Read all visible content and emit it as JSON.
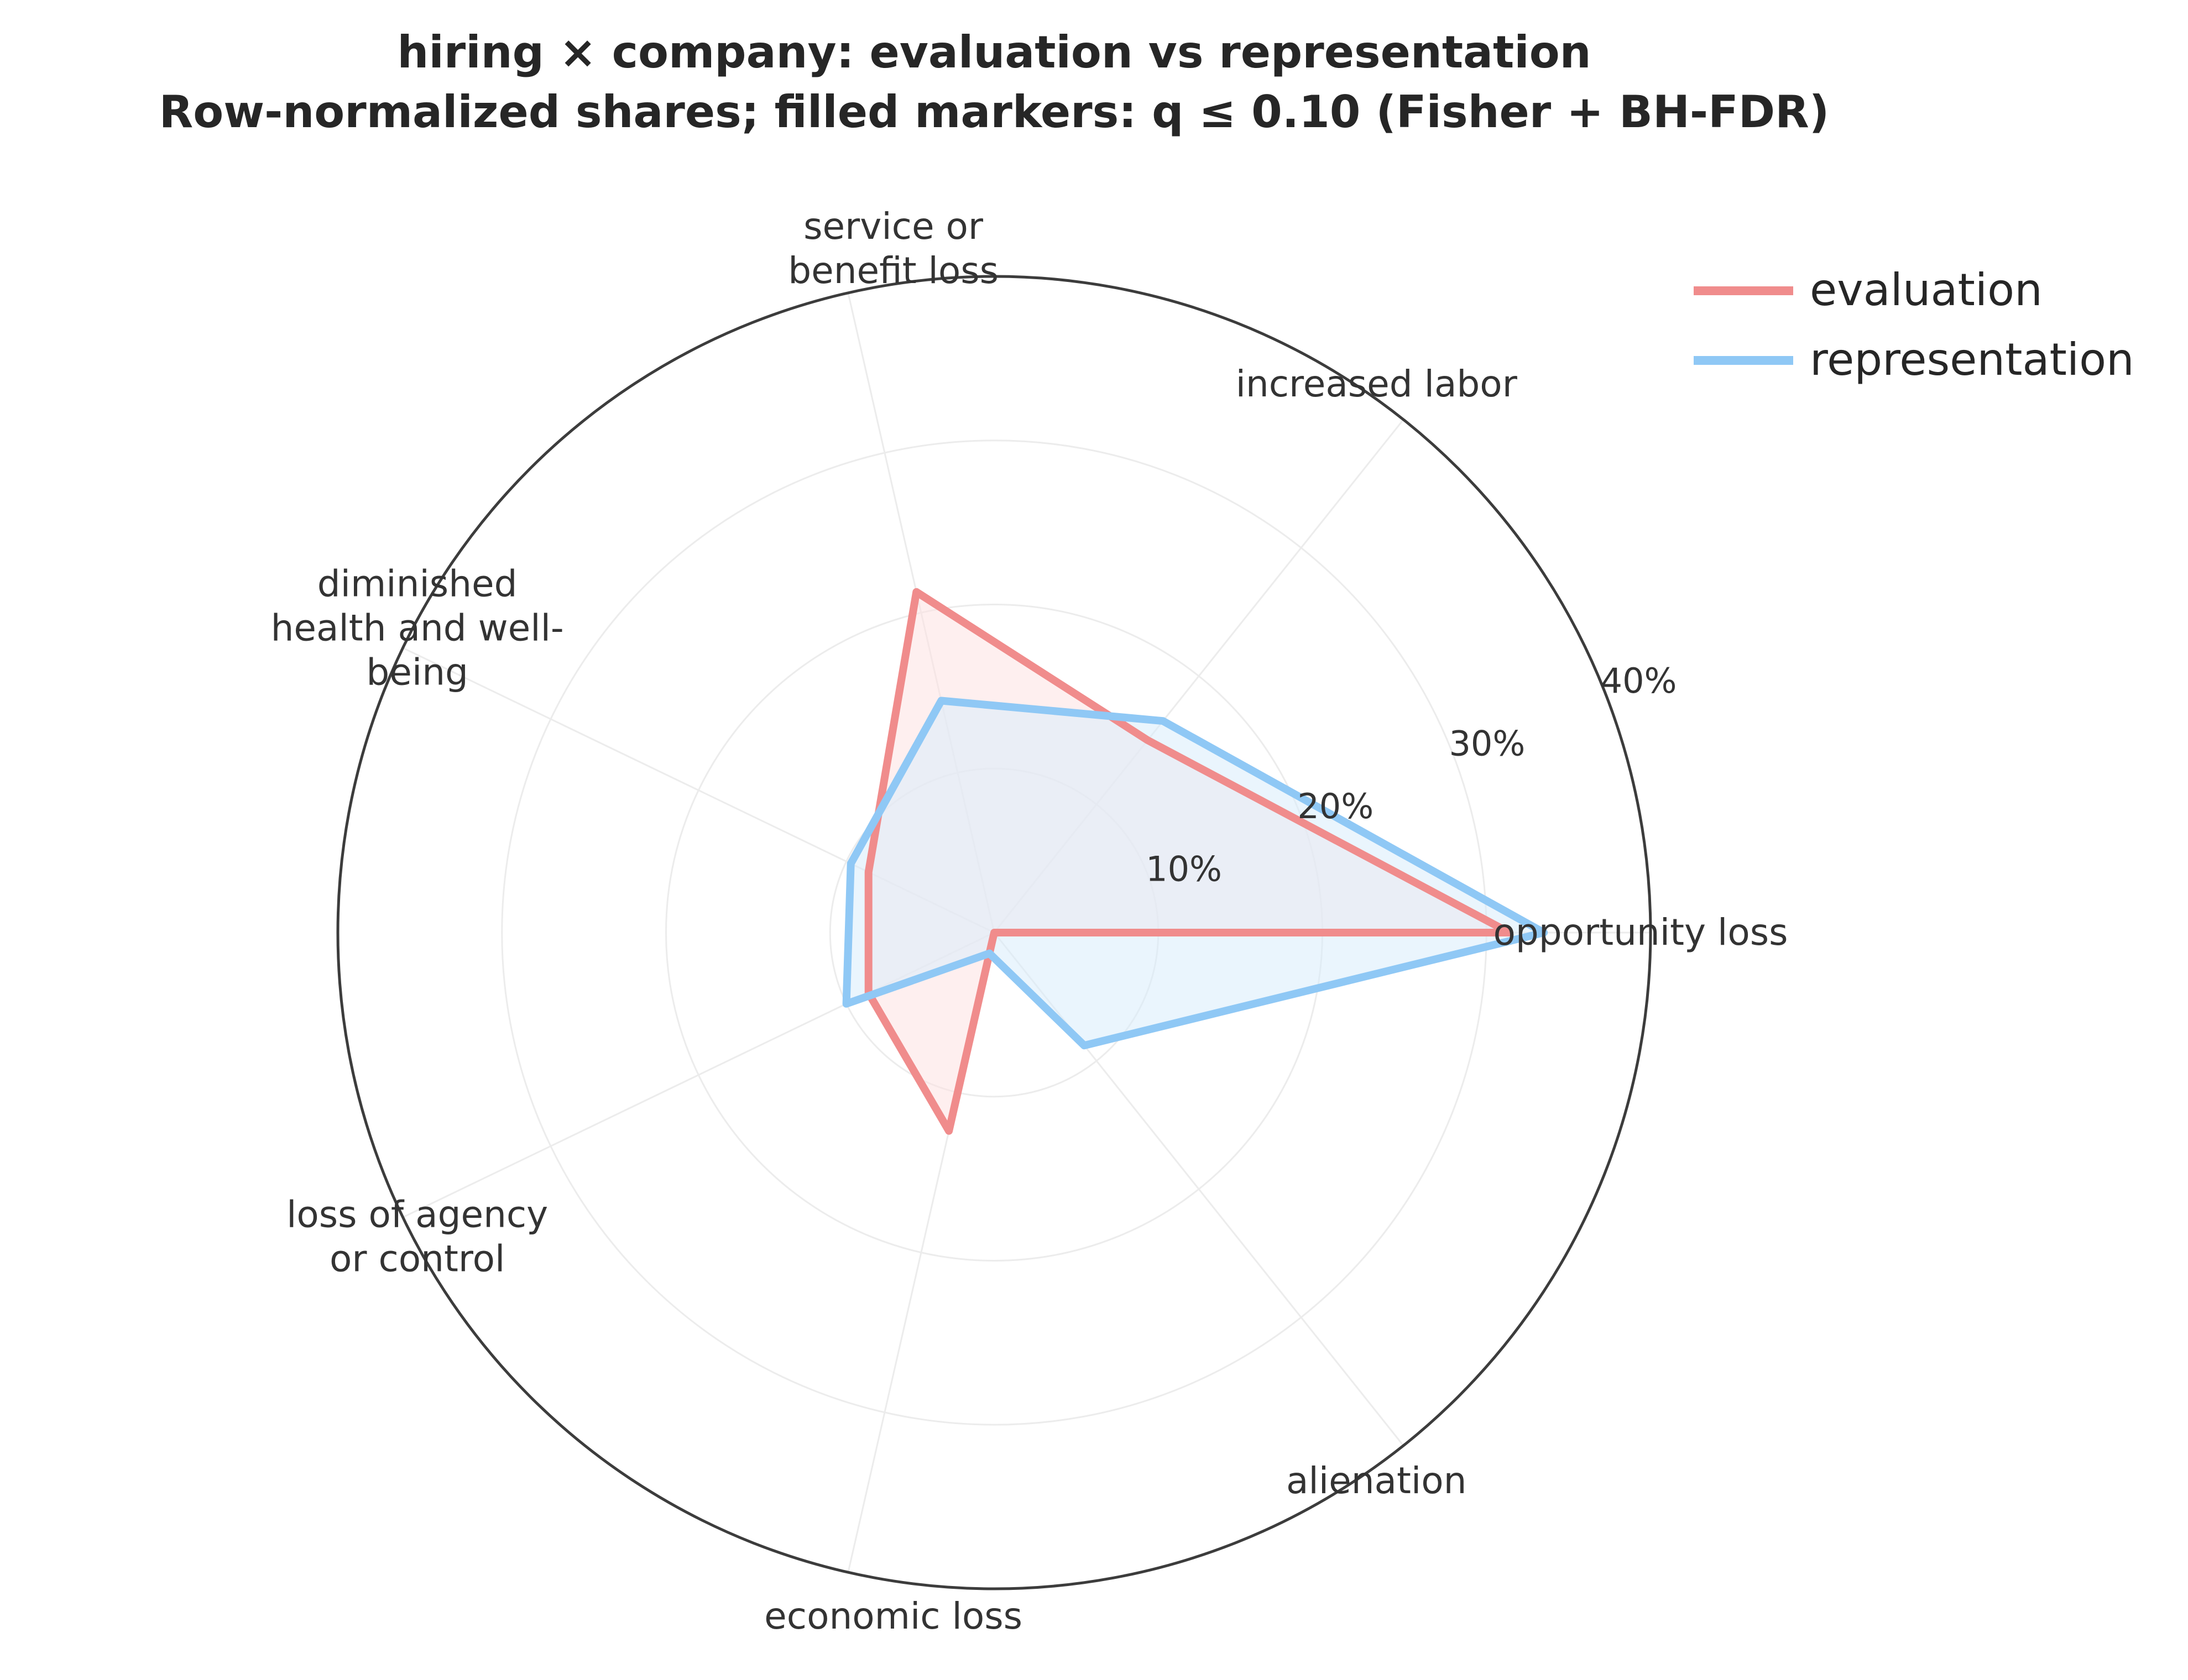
{
  "chart_data": {
    "type": "radar",
    "title_lines": [
      "hiring × company: evaluation vs representation",
      "Row-normalized shares; filled markers: q ≤ 0.10 (Fisher + BH-FDR)"
    ],
    "categories": [
      [
        "opportunity loss"
      ],
      [
        "increased labor"
      ],
      [
        "service or",
        "benefit loss"
      ],
      [
        "diminished",
        "health and well-",
        "being"
      ],
      [
        "loss of agency",
        "or control"
      ],
      [
        "economic loss"
      ],
      [
        "alienation"
      ]
    ],
    "r_ticks": [
      "10%",
      "20%",
      "30%",
      "40%"
    ],
    "r_tick_values": [
      10,
      20,
      30,
      40
    ],
    "rlim": [
      0,
      40
    ],
    "grid": true,
    "legend_position": "top-right",
    "series": [
      {
        "name": "evaluation",
        "color": "#f08c8c",
        "fill": "#fde2e2",
        "values": [
          31.4,
          15.0,
          21.3,
          8.5,
          8.5,
          12.4,
          0.0
        ]
      },
      {
        "name": "representation",
        "color": "#8fc8f5",
        "fill": "#d9ecfb",
        "values": [
          33.5,
          16.5,
          14.5,
          9.7,
          10.0,
          1.3,
          8.8
        ]
      }
    ]
  }
}
